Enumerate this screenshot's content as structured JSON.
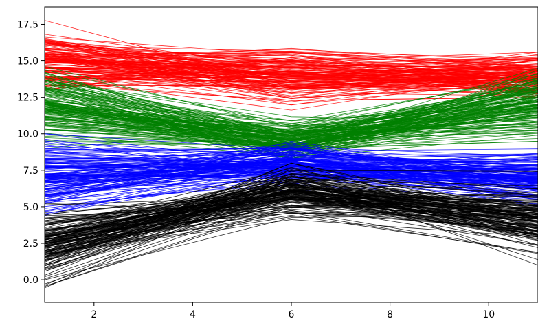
{
  "chart_data": {
    "type": "line",
    "title": "",
    "xlabel": "",
    "ylabel": "",
    "xlim": [
      1,
      11
    ],
    "ylim": [
      -1.55,
      18.7
    ],
    "x": [
      1,
      6,
      11
    ],
    "x_ticks": [
      2,
      4,
      6,
      8,
      10
    ],
    "y_ticks": [
      0.0,
      2.5,
      5.0,
      7.5,
      10.0,
      12.5,
      15.0,
      17.5
    ],
    "x_tick_labels": [
      "2",
      "4",
      "6",
      "8",
      "10"
    ],
    "y_tick_labels": [
      "0.0",
      "2.5",
      "5.0",
      "7.5",
      "10.0",
      "12.5",
      "15.0",
      "17.5"
    ],
    "grid": false,
    "legend": false,
    "series": [
      {
        "color": "#ff0000",
        "count": 150,
        "mean_values": [
          15.0,
          14.0,
          14.0
        ],
        "spread": [
          1.0,
          1.1,
          0.8
        ],
        "range_at_x": {
          "1": [
            13.0,
            17.8
          ],
          "6": [
            11.6,
            16.8
          ],
          "11": [
            12.5,
            15.6
          ]
        }
      },
      {
        "color": "#008000",
        "count": 150,
        "mean_values": [
          12.0,
          9.5,
          12.0
        ],
        "spread": [
          1.2,
          0.6,
          1.0
        ],
        "range_at_x": {
          "1": [
            9.0,
            15.0
          ],
          "6": [
            8.3,
            11.5
          ],
          "11": [
            9.5,
            14.5
          ]
        }
      },
      {
        "color": "#0000ff",
        "count": 150,
        "mean_values": [
          7.0,
          8.0,
          7.0
        ],
        "spread": [
          1.2,
          0.7,
          0.8
        ],
        "range_at_x": {
          "1": [
            4.4,
            10.0
          ],
          "6": [
            5.5,
            9.5
          ],
          "11": [
            5.0,
            9.0
          ]
        }
      },
      {
        "color": "#000000",
        "count": 150,
        "mean_values": [
          2.5,
          6.0,
          4.0
        ],
        "spread": [
          1.2,
          0.9,
          1.0
        ],
        "range_at_x": {
          "1": [
            -0.6,
            5.8
          ],
          "6": [
            3.0,
            8.0
          ],
          "11": [
            1.0,
            7.5
          ]
        }
      }
    ]
  }
}
